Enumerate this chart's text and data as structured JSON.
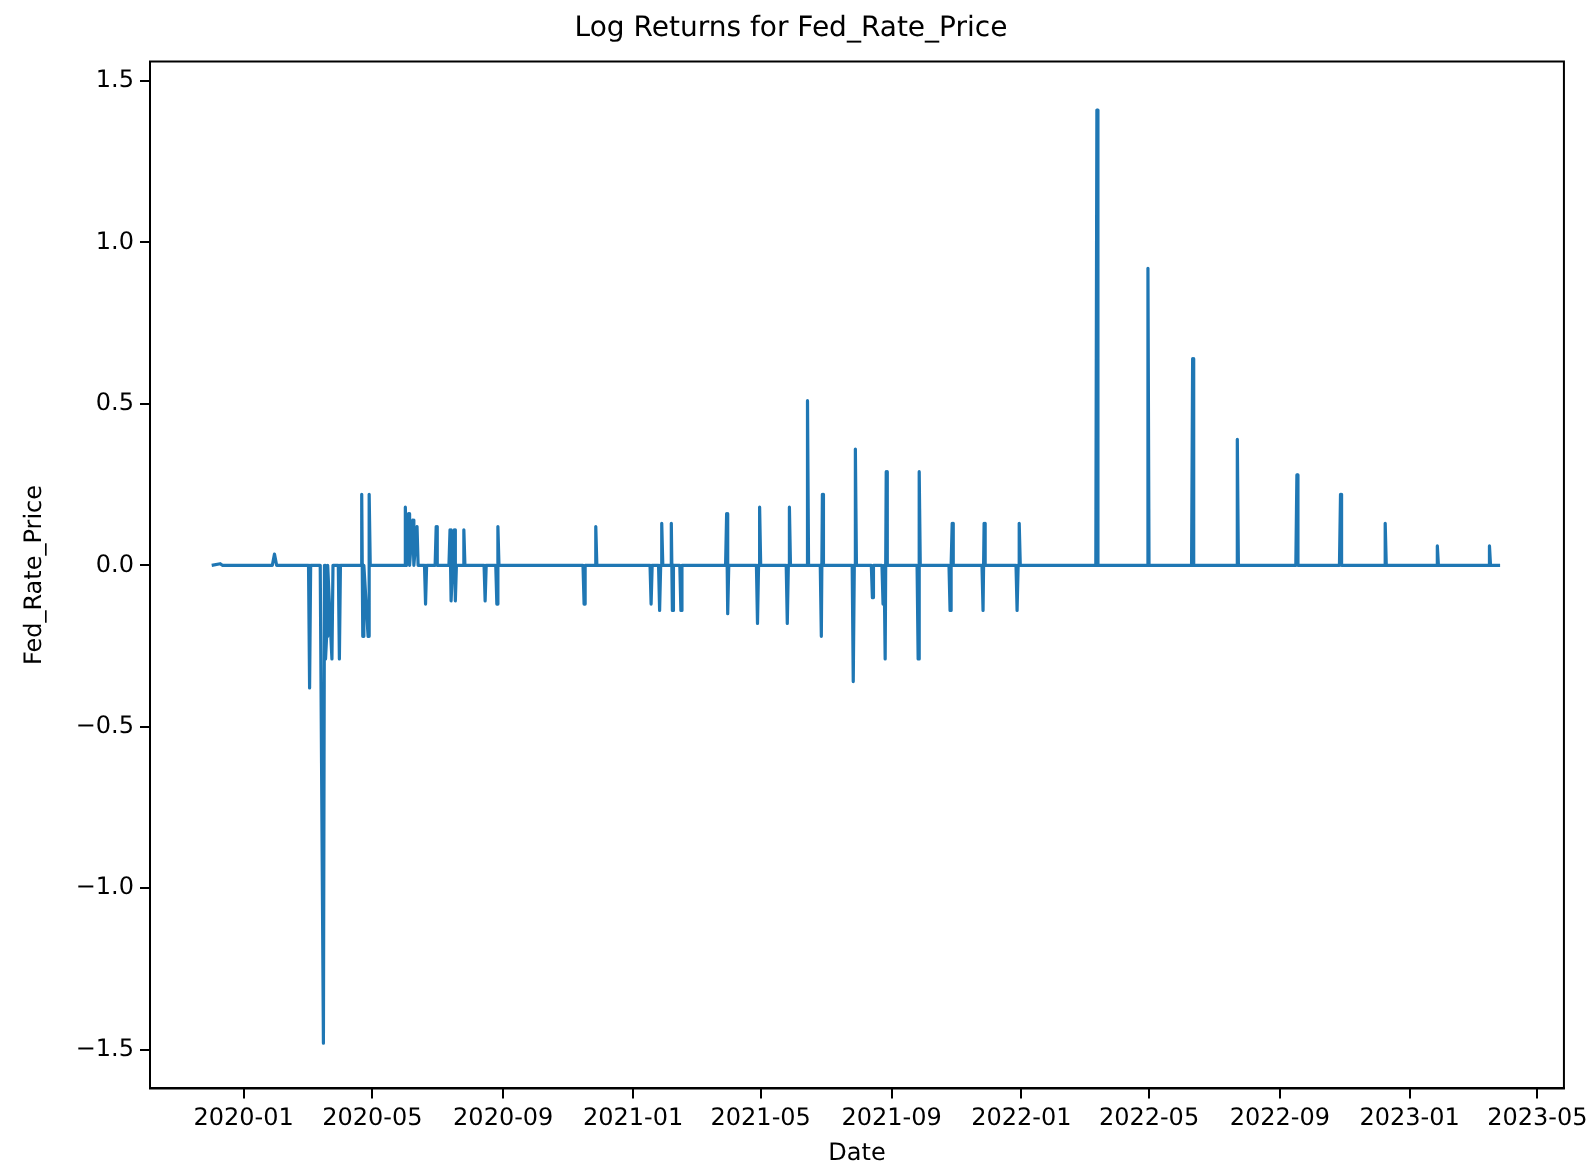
{
  "chart_data": {
    "type": "line",
    "title": "Log Returns for Fed_Rate_Price",
    "xlabel": "Date",
    "ylabel": "Fed_Rate_Price",
    "xlim": [
      "2019-10-05",
      "2023-05-26"
    ],
    "xticks": [
      "2020-01",
      "2020-05",
      "2020-09",
      "2021-01",
      "2021-05",
      "2021-09",
      "2022-01",
      "2022-05",
      "2022-09",
      "2023-01",
      "2023-05"
    ],
    "ylim": [
      -1.62,
      1.56
    ],
    "yticks": [
      {
        "value": -1.5,
        "label": "−1.5"
      },
      {
        "value": -1.0,
        "label": "−1.0"
      },
      {
        "value": -0.5,
        "label": "−0.5"
      },
      {
        "value": 0,
        "label": "0.0"
      },
      {
        "value": 0.5,
        "label": "0.5"
      },
      {
        "value": 1.0,
        "label": "1.0"
      },
      {
        "value": 1.5,
        "label": "1.5"
      }
    ],
    "grid": false,
    "legend": false,
    "marker": "none",
    "line_style": "solid",
    "series": [
      {
        "color": "#1f77b4",
        "x": [
          "2019-12-02",
          "2019-12-10",
          "2019-12-12",
          "2020-01-28",
          "2020-01-30",
          "2020-02-01",
          "2020-03-02",
          "2020-03-03",
          "2020-03-04",
          "2020-03-13",
          "2020-03-16",
          "2020-03-17",
          "2020-03-18",
          "2020-03-19",
          "2020-03-20",
          "2020-03-23",
          "2020-03-24",
          "2020-03-25",
          "2020-03-30",
          "2020-03-31",
          "2020-04-01",
          "2020-04-20",
          "2020-04-21",
          "2020-04-22",
          "2020-04-23",
          "2020-04-27",
          "2020-04-28",
          "2020-04-29",
          "2020-05-31",
          "2020-06-01",
          "2020-06-02",
          "2020-06-04",
          "2020-06-05",
          "2020-06-08",
          "2020-06-09",
          "2020-06-12",
          "2020-06-13",
          "2020-06-19",
          "2020-06-20",
          "2020-06-21",
          "2020-06-29",
          "2020-06-30",
          "2020-07-01",
          "2020-07-12",
          "2020-07-13",
          "2020-07-14",
          "2020-07-17",
          "2020-07-18",
          "2020-07-19",
          "2020-07-25",
          "2020-07-26",
          "2020-07-27",
          "2020-08-14",
          "2020-08-15",
          "2020-08-16",
          "2020-08-25",
          "2020-08-26",
          "2020-08-27",
          "2020-08-28",
          "2020-11-15",
          "2020-11-16",
          "2020-11-17",
          "2020-11-26",
          "2020-11-27",
          "2020-11-28",
          "2021-01-17",
          "2021-01-18",
          "2021-01-19",
          "2021-01-25",
          "2021-01-26",
          "2021-01-27",
          "2021-01-28",
          "2021-01-29",
          "2021-02-05",
          "2021-02-06",
          "2021-02-07",
          "2021-02-08",
          "2021-02-14",
          "2021-02-15",
          "2021-02-16",
          "2021-03-29",
          "2021-03-30",
          "2021-03-31",
          "2021-04-01",
          "2021-04-27",
          "2021-04-28",
          "2021-04-29",
          "2021-04-30",
          "2021-05-01",
          "2021-05-25",
          "2021-05-26",
          "2021-05-27",
          "2021-05-28",
          "2021-05-29",
          "2021-06-13",
          "2021-06-14",
          "2021-06-15",
          "2021-06-26",
          "2021-06-27",
          "2021-06-28",
          "2021-06-29",
          "2021-07-26",
          "2021-07-27",
          "2021-07-28",
          "2021-07-29",
          "2021-07-30",
          "2021-08-13",
          "2021-08-14",
          "2021-08-15",
          "2021-08-23",
          "2021-08-24",
          "2021-08-25",
          "2021-08-26",
          "2021-08-27",
          "2021-08-28",
          "2021-09-25",
          "2021-09-26",
          "2021-09-27",
          "2021-09-28",
          "2021-10-25",
          "2021-10-26",
          "2021-10-27",
          "2021-10-28",
          "2021-10-29",
          "2021-11-25",
          "2021-11-26",
          "2021-11-27",
          "2021-11-28",
          "2021-12-27",
          "2021-12-28",
          "2021-12-29",
          "2021-12-30",
          "2021-12-31",
          "2022-03-12",
          "2022-03-13",
          "2022-03-14",
          "2022-04-29",
          "2022-04-30",
          "2022-05-01",
          "2022-06-10",
          "2022-06-11",
          "2022-06-12",
          "2022-07-22",
          "2022-07-23",
          "2022-07-24",
          "2022-09-16",
          "2022-09-17",
          "2022-09-18",
          "2022-10-27",
          "2022-10-28",
          "2022-10-29",
          "2022-12-08",
          "2022-12-09",
          "2022-12-10",
          "2023-01-26",
          "2023-01-27",
          "2023-01-28",
          "2023-03-16",
          "2023-03-17",
          "2023-03-18",
          "2023-03-27"
        ],
        "values": [
          0,
          0.005,
          0,
          0,
          0.035,
          0,
          0,
          -0.38,
          0,
          0,
          -1.48,
          0,
          -0.29,
          -0.22,
          0,
          -0.22,
          -0.29,
          0,
          0,
          -0.29,
          0,
          0,
          0.22,
          -0.22,
          0,
          -0.22,
          0.22,
          0,
          0,
          0.18,
          0,
          0.16,
          0,
          0.14,
          0,
          0.12,
          0,
          0,
          -0.12,
          0,
          0,
          0.12,
          0,
          0,
          0.11,
          -0.11,
          0.11,
          -0.11,
          0,
          0,
          0.11,
          0,
          0,
          -0.11,
          0,
          0,
          -0.12,
          0.12,
          0,
          0,
          -0.12,
          0,
          0,
          0.12,
          0,
          0,
          -0.12,
          0,
          0,
          -0.14,
          0,
          0.13,
          0,
          0,
          0.13,
          -0.14,
          0,
          0,
          -0.14,
          0,
          0,
          0.16,
          -0.15,
          0,
          0,
          -0.18,
          0,
          0.18,
          0,
          0,
          -0.18,
          0,
          0.18,
          0,
          0,
          0.51,
          0,
          0,
          -0.22,
          0.22,
          0,
          0,
          -0.36,
          0,
          0.36,
          0,
          0,
          -0.1,
          0,
          0,
          -0.12,
          0,
          -0.29,
          0.29,
          0,
          0,
          -0.29,
          0.29,
          0,
          0,
          -0.14,
          0,
          0.13,
          0,
          0,
          -0.14,
          0.13,
          0,
          0,
          -0.14,
          0,
          0.13,
          0,
          0,
          1.41,
          0,
          0,
          0.92,
          0,
          0,
          0.64,
          0,
          0,
          0.39,
          0,
          0,
          0.28,
          0,
          0,
          0.22,
          0,
          0,
          0.13,
          0,
          0,
          0.06,
          0,
          0,
          0.06,
          0,
          0
        ]
      }
    ]
  }
}
